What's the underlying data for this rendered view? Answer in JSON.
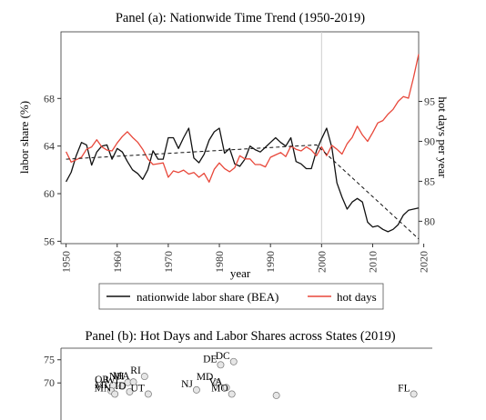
{
  "chart_data": [
    {
      "type": "line",
      "title": "Panel (a): Nationwide Time Trend (1950-2019)",
      "xlabel": "year",
      "ylabel": "labor share (%)",
      "y2label": "hot days per year",
      "xlim": [
        1949,
        2019
      ],
      "ylim": [
        55.8,
        73.6
      ],
      "y2lim": [
        77.2,
        103.7
      ],
      "xticks": [
        1950,
        1960,
        1970,
        1980,
        1990,
        2000,
        2010,
        2020
      ],
      "yticks": [
        56,
        60,
        64,
        68
      ],
      "y2ticks": [
        80,
        85,
        90,
        95
      ],
      "vline_x": 2000,
      "grid": false,
      "legend_position": "bottom",
      "colors": {
        "labor_share": "#111111",
        "hot_days": "#e8473a",
        "trend": "#111111"
      },
      "series": [
        {
          "name": "nationwide labor share (BEA)",
          "axis": "left",
          "x": [
            1950,
            1951,
            1952,
            1953,
            1954,
            1955,
            1956,
            1957,
            1958,
            1959,
            1960,
            1961,
            1962,
            1963,
            1964,
            1965,
            1966,
            1967,
            1968,
            1969,
            1970,
            1971,
            1972,
            1973,
            1974,
            1975,
            1976,
            1977,
            1978,
            1979,
            1980,
            1981,
            1982,
            1983,
            1984,
            1985,
            1986,
            1987,
            1988,
            1989,
            1990,
            1991,
            1992,
            1993,
            1994,
            1995,
            1996,
            1997,
            1998,
            1999,
            2000,
            2001,
            2002,
            2003,
            2004,
            2005,
            2006,
            2007,
            2008,
            2009,
            2010,
            2011,
            2012,
            2013,
            2014,
            2015,
            2016,
            2017,
            2018,
            2019
          ],
          "values": [
            61.0,
            61.8,
            63.2,
            64.3,
            64.1,
            62.4,
            63.5,
            64.0,
            64.1,
            62.9,
            63.8,
            63.5,
            62.7,
            62.0,
            61.7,
            61.2,
            62.0,
            63.6,
            62.9,
            62.9,
            64.7,
            64.7,
            63.8,
            64.7,
            65.5,
            63.0,
            62.6,
            63.3,
            64.5,
            65.2,
            65.5,
            63.4,
            63.8,
            62.5,
            62.3,
            62.9,
            64.0,
            63.7,
            63.5,
            63.9,
            64.3,
            64.7,
            64.3,
            64.0,
            64.7,
            62.7,
            62.5,
            62.1,
            62.1,
            63.6,
            64.6,
            65.5,
            63.9,
            60.9,
            59.7,
            58.7,
            59.3,
            59.6,
            59.3,
            57.6,
            57.2,
            57.3,
            57.0,
            56.8,
            57.0,
            57.4,
            58.2,
            58.6,
            58.7,
            58.8
          ]
        },
        {
          "name": "hot days",
          "axis": "right",
          "x": [
            1950,
            1951,
            1952,
            1953,
            1954,
            1955,
            1956,
            1957,
            1958,
            1959,
            1960,
            1961,
            1962,
            1963,
            1964,
            1965,
            1966,
            1967,
            1968,
            1969,
            1970,
            1971,
            1972,
            1973,
            1974,
            1975,
            1976,
            1977,
            1978,
            1979,
            1980,
            1981,
            1982,
            1983,
            1984,
            1985,
            1986,
            1987,
            1988,
            1989,
            1990,
            1991,
            1992,
            1993,
            1994,
            1995,
            1996,
            1997,
            1998,
            1999,
            2000,
            2001,
            2002,
            2003,
            2004,
            2005,
            2006,
            2007,
            2008,
            2009,
            2010,
            2011,
            2012,
            2013,
            2014,
            2015,
            2016,
            2017,
            2018,
            2019
          ],
          "values": [
            88.7,
            87.4,
            87.7,
            88.0,
            89.0,
            89.3,
            90.2,
            89.3,
            88.9,
            88.8,
            89.8,
            90.6,
            91.2,
            90.5,
            89.9,
            89.0,
            87.8,
            87.1,
            87.2,
            87.3,
            85.5,
            86.3,
            86.1,
            86.4,
            85.9,
            86.1,
            85.5,
            86.0,
            84.9,
            86.5,
            87.3,
            86.6,
            86.2,
            86.7,
            88.2,
            87.8,
            87.8,
            87.1,
            87.1,
            86.8,
            88.0,
            88.3,
            88.6,
            88.1,
            89.4,
            89.0,
            88.8,
            89.3,
            88.9,
            88.2,
            89.3,
            88.2,
            89.5,
            89.0,
            88.4,
            89.7,
            90.5,
            91.9,
            90.8,
            90.0,
            91.1,
            92.3,
            92.6,
            93.4,
            94.0,
            95.0,
            95.6,
            95.4,
            98.0,
            100.9
          ]
        },
        {
          "name": "",
          "axis": "left",
          "style": "dashed",
          "x": [
            1950,
            1999,
            2019
          ],
          "values": [
            62.9,
            64.1,
            56.2
          ]
        }
      ],
      "legend": [
        "nationwide labor share (BEA)",
        "hot days"
      ]
    },
    {
      "type": "scatter",
      "title": "Panel (b): Hot Days and Labor Shares across States (2019)",
      "yticks": [
        70,
        75
      ],
      "ylim": [
        62,
        77.5
      ],
      "xlim": [
        0,
        100
      ],
      "points": [
        {
          "label": "DC",
          "x": 46.5,
          "y": 74.6
        },
        {
          "label": "DE",
          "x": 43.0,
          "y": 73.9
        },
        {
          "label": "RI",
          "x": 22.5,
          "y": 71.4
        },
        {
          "label": "NH",
          "x": 18.0,
          "y": 70.1
        },
        {
          "label": "MA",
          "x": 19.5,
          "y": 70.2
        },
        {
          "label": "OR",
          "x": 14.0,
          "y": 69.5
        },
        {
          "label": "WI",
          "x": 16.5,
          "y": 69.3
        },
        {
          "label": "MD",
          "x": 42.0,
          "y": 70.0
        },
        {
          "label": "VA",
          "x": 44.5,
          "y": 69.0
        },
        {
          "label": "NJ",
          "x": 36.5,
          "y": 68.5
        },
        {
          "label": "MI",
          "x": 13.5,
          "y": 68.3
        },
        {
          "label": "ID",
          "x": 18.5,
          "y": 68.1
        },
        {
          "label": "MN",
          "x": 14.5,
          "y": 67.6
        },
        {
          "label": "UT",
          "x": 23.5,
          "y": 67.6
        },
        {
          "label": "MO",
          "x": 46.0,
          "y": 67.6
        },
        {
          "label": "",
          "x": 58.0,
          "y": 67.3
        },
        {
          "label": "FL",
          "x": 95.0,
          "y": 67.6
        }
      ]
    }
  ]
}
